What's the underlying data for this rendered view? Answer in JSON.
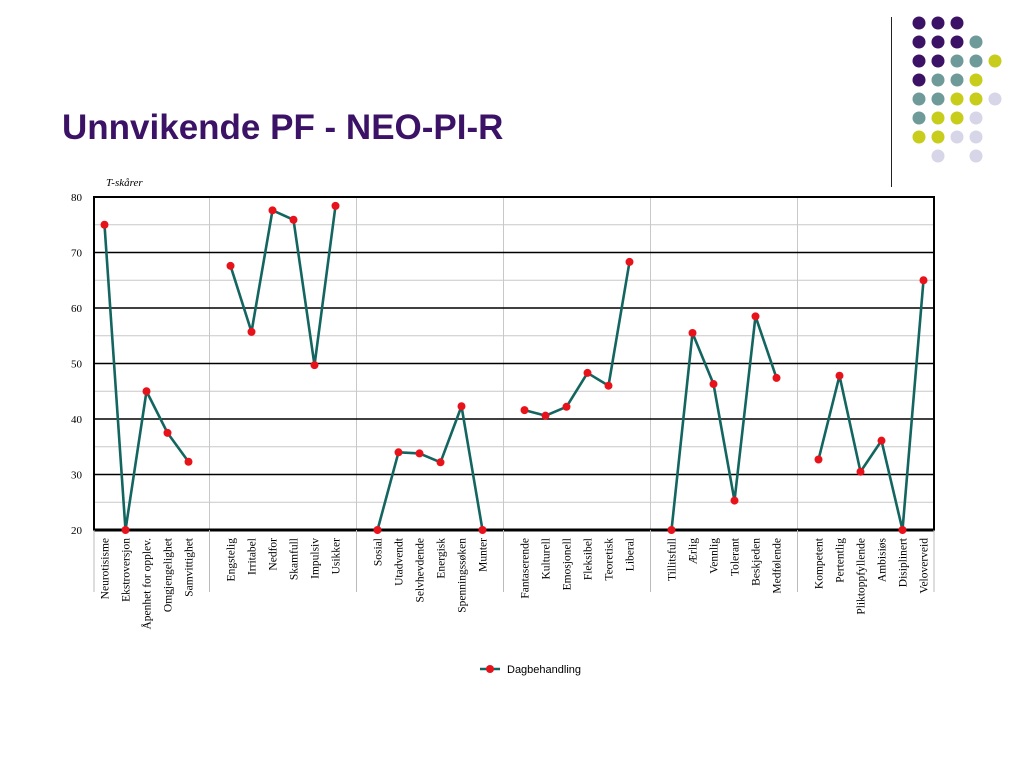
{
  "slide": {
    "title": "Unnvikende PF - NEO-PI-R",
    "colors": {
      "title": "#3b1266",
      "dot_purple": "#3b1266",
      "dot_teal": "#6f9a9a",
      "dot_yellow": "#c8cc1a",
      "dot_lavender": "#d6d6e8"
    }
  },
  "chart_data": {
    "type": "line",
    "title": "",
    "ylabel": "T-skårer",
    "xlabel": "",
    "ylim": [
      20,
      80
    ],
    "yticks": [
      20,
      30,
      40,
      50,
      60,
      70,
      80
    ],
    "grid": true,
    "legend_position": "bottom",
    "series_color": "#136560",
    "marker_color": "#e8121b",
    "groups": [
      {
        "categories": [
          "Neurotisisme",
          "Ekstroversjon",
          "Åpenhet for opplev.",
          "Omgjengelighet",
          "Samvittighet"
        ],
        "values": [
          75,
          20,
          45,
          37.5,
          32.3
        ]
      },
      {
        "categories": [
          "Engstelig",
          "Irritabel",
          "Nedfor",
          "Skamfull",
          "Impulsiv",
          "Usikker"
        ],
        "values": [
          67.6,
          55.7,
          77.6,
          75.9,
          49.7,
          78.4
        ]
      },
      {
        "categories": [
          "Sosial",
          "Utadvendt",
          "Selvhevdende",
          "Energisk",
          "Spenningssøken",
          "Munter"
        ],
        "values": [
          20,
          34,
          33.8,
          32.2,
          42.3,
          20
        ]
      },
      {
        "categories": [
          "Fantaserende",
          "Kulturell",
          "Emosjonell",
          "Fleksibel",
          "Teoretisk",
          "Liberal"
        ],
        "values": [
          41.6,
          40.6,
          42.2,
          48.3,
          46,
          68.3
        ]
      },
      {
        "categories": [
          "Tillitsfull",
          "Ærlig",
          "Vennlig",
          "Tolerant",
          "Beskjeden",
          "Medfølende"
        ],
        "values": [
          20,
          55.5,
          46.3,
          25.3,
          58.5,
          47.4
        ]
      },
      {
        "categories": [
          "Kompetent",
          "Pertentlig",
          "Pliktoppfyllende",
          "Ambisiøs",
          "Disiplinert",
          "Veloverveid"
        ],
        "values": [
          32.7,
          47.8,
          30.5,
          36.1,
          20,
          65
        ]
      }
    ],
    "series": [
      {
        "name": "Dagbehandling"
      }
    ]
  }
}
